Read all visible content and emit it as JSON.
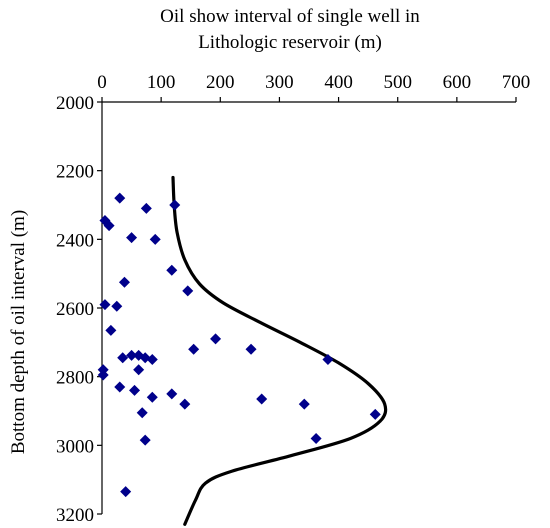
{
  "chart_data": {
    "type": "scatter",
    "title_lines": [
      "Oil show interval of single well in",
      "Lithologic reservoir (m)"
    ],
    "ylabel": "Bottom depth of oil interval  (m)",
    "x_axis_position": "top",
    "xlim": [
      0,
      700
    ],
    "ylim": [
      2000,
      3200
    ],
    "y_inverted": true,
    "xticks": [
      0,
      100,
      200,
      300,
      400,
      500,
      600,
      700
    ],
    "yticks": [
      2000,
      2200,
      2400,
      2600,
      2800,
      3000,
      3200
    ],
    "grid": false,
    "marker_color": "#00008B",
    "curve_color": "#000000",
    "points": [
      {
        "x": 30,
        "y": 2280
      },
      {
        "x": 75,
        "y": 2310
      },
      {
        "x": 123,
        "y": 2300
      },
      {
        "x": 5,
        "y": 2345
      },
      {
        "x": 12,
        "y": 2360
      },
      {
        "x": 50,
        "y": 2395
      },
      {
        "x": 90,
        "y": 2400
      },
      {
        "x": 118,
        "y": 2490
      },
      {
        "x": 38,
        "y": 2525
      },
      {
        "x": 145,
        "y": 2550
      },
      {
        "x": 5,
        "y": 2590
      },
      {
        "x": 25,
        "y": 2595
      },
      {
        "x": 15,
        "y": 2665
      },
      {
        "x": 192,
        "y": 2690
      },
      {
        "x": 155,
        "y": 2720
      },
      {
        "x": 252,
        "y": 2720
      },
      {
        "x": 35,
        "y": 2745
      },
      {
        "x": 50,
        "y": 2738
      },
      {
        "x": 62,
        "y": 2738
      },
      {
        "x": 73,
        "y": 2745
      },
      {
        "x": 85,
        "y": 2750
      },
      {
        "x": 382,
        "y": 2750
      },
      {
        "x": 2,
        "y": 2780
      },
      {
        "x": 2,
        "y": 2795
      },
      {
        "x": 62,
        "y": 2780
      },
      {
        "x": 30,
        "y": 2830
      },
      {
        "x": 55,
        "y": 2840
      },
      {
        "x": 118,
        "y": 2850
      },
      {
        "x": 85,
        "y": 2860
      },
      {
        "x": 140,
        "y": 2880
      },
      {
        "x": 270,
        "y": 2865
      },
      {
        "x": 342,
        "y": 2880
      },
      {
        "x": 68,
        "y": 2905
      },
      {
        "x": 462,
        "y": 2910
      },
      {
        "x": 73,
        "y": 2985
      },
      {
        "x": 362,
        "y": 2980
      },
      {
        "x": 40,
        "y": 3135
      }
    ],
    "curve": [
      {
        "x": 120,
        "y": 2220
      },
      {
        "x": 122,
        "y": 2300
      },
      {
        "x": 127,
        "y": 2380
      },
      {
        "x": 140,
        "y": 2460
      },
      {
        "x": 165,
        "y": 2530
      },
      {
        "x": 205,
        "y": 2585
      },
      {
        "x": 265,
        "y": 2640
      },
      {
        "x": 335,
        "y": 2700
      },
      {
        "x": 400,
        "y": 2760
      },
      {
        "x": 450,
        "y": 2820
      },
      {
        "x": 478,
        "y": 2880
      },
      {
        "x": 470,
        "y": 2930
      },
      {
        "x": 420,
        "y": 2980
      },
      {
        "x": 320,
        "y": 3030
      },
      {
        "x": 220,
        "y": 3075
      },
      {
        "x": 175,
        "y": 3110
      },
      {
        "x": 158,
        "y": 3160
      },
      {
        "x": 140,
        "y": 3230
      }
    ]
  }
}
